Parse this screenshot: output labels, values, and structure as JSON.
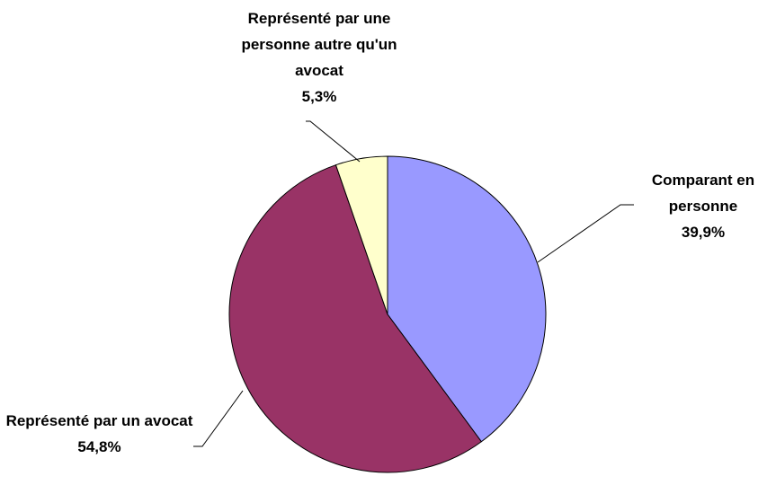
{
  "chart_data": {
    "type": "pie",
    "categories": [
      "Comparant en personne",
      "Représenté par un avocat",
      "Représenté par une personne autre qu'un avocat"
    ],
    "values": [
      39.9,
      54.8,
      5.3
    ],
    "value_labels": [
      "39,9%",
      "54,8%",
      "5,3%"
    ],
    "colors": [
      "#9999ff",
      "#993366",
      "#ffffcc"
    ]
  }
}
